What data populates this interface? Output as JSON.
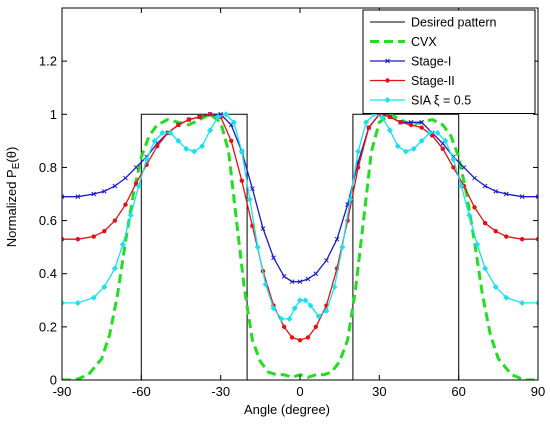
{
  "chart_data": {
    "type": "line",
    "title": "",
    "xlabel": "Angle (degree)",
    "ylabel_prefix": "Normalized  P",
    "ylabel_sub": "E",
    "ylabel_suffix": "(θ)",
    "xlim": [
      -90,
      90
    ],
    "ylim": [
      0,
      1.4
    ],
    "xticks": [
      -90,
      -60,
      -30,
      0,
      30,
      60,
      90
    ],
    "yticks": [
      0,
      0.2,
      0.4,
      0.6,
      0.8,
      1,
      1.2
    ],
    "grid": false,
    "legend_position": "top-right",
    "series": [
      {
        "name": "Desired pattern",
        "color": "#000000",
        "style": "solid",
        "marker": "none",
        "x": [
          -90,
          -60,
          -60,
          -20,
          -20,
          20,
          20,
          60,
          60,
          90
        ],
        "y": [
          0,
          0,
          1,
          1,
          0,
          0,
          1,
          1,
          0,
          0
        ]
      },
      {
        "name": "CVX",
        "color": "#22dd22",
        "style": "dashed",
        "marker": "none",
        "x": [
          -90,
          -85,
          -80,
          -75,
          -72,
          -69,
          -66,
          -63,
          -60,
          -57,
          -54,
          -50,
          -46,
          -42,
          -38,
          -34,
          -30,
          -27,
          -24,
          -21,
          -18,
          -15,
          -12,
          -9,
          -6,
          -3,
          0,
          3,
          6,
          9,
          12,
          15,
          18,
          21,
          24,
          27,
          30,
          34,
          38,
          42,
          46,
          50,
          54,
          57,
          60,
          63,
          66,
          69,
          72,
          75,
          80,
          85,
          90
        ],
        "y": [
          0,
          0,
          0.02,
          0.08,
          0.17,
          0.32,
          0.52,
          0.7,
          0.84,
          0.92,
          0.96,
          0.98,
          0.97,
          0.96,
          0.98,
          1,
          0.97,
          0.86,
          0.6,
          0.34,
          0.15,
          0.07,
          0.03,
          0.02,
          0.02,
          0.01,
          0.02,
          0.01,
          0.02,
          0.02,
          0.03,
          0.07,
          0.15,
          0.34,
          0.6,
          0.86,
          0.97,
          1,
          0.98,
          0.96,
          0.97,
          0.98,
          0.96,
          0.92,
          0.84,
          0.7,
          0.52,
          0.32,
          0.17,
          0.08,
          0.02,
          0,
          0
        ]
      },
      {
        "name": "Stage-I",
        "color": "#1a1acc",
        "style": "solid",
        "marker": "x",
        "x": [
          -90,
          -84,
          -78,
          -74,
          -70,
          -66,
          -62,
          -58,
          -54,
          -50,
          -46,
          -42,
          -38,
          -34,
          -30,
          -26,
          -22,
          -18,
          -14,
          -10,
          -6,
          -3,
          0,
          3,
          6,
          10,
          14,
          18,
          22,
          26,
          30,
          34,
          38,
          42,
          46,
          50,
          54,
          58,
          62,
          66,
          70,
          74,
          78,
          84,
          90
        ],
        "y": [
          0.69,
          0.69,
          0.7,
          0.71,
          0.73,
          0.76,
          0.8,
          0.84,
          0.89,
          0.93,
          0.96,
          0.98,
          0.99,
          1.0,
          1.0,
          0.96,
          0.86,
          0.72,
          0.57,
          0.46,
          0.39,
          0.37,
          0.37,
          0.38,
          0.4,
          0.45,
          0.53,
          0.66,
          0.82,
          0.95,
          1.0,
          0.99,
          0.97,
          0.97,
          0.97,
          0.93,
          0.89,
          0.84,
          0.8,
          0.76,
          0.73,
          0.71,
          0.7,
          0.69,
          0.69
        ]
      },
      {
        "name": "Stage-II",
        "color": "#e61010",
        "style": "solid",
        "marker": "dot",
        "x": [
          -90,
          -84,
          -78,
          -74,
          -70,
          -66,
          -62,
          -58,
          -54,
          -50,
          -46,
          -42,
          -38,
          -34,
          -30,
          -26,
          -22,
          -18,
          -14,
          -10,
          -6,
          -3,
          0,
          3,
          6,
          10,
          14,
          18,
          22,
          26,
          30,
          34,
          38,
          42,
          46,
          50,
          54,
          58,
          62,
          66,
          70,
          74,
          78,
          84,
          90
        ],
        "y": [
          0.53,
          0.53,
          0.54,
          0.56,
          0.6,
          0.66,
          0.74,
          0.81,
          0.88,
          0.93,
          0.96,
          0.98,
          0.99,
          1.0,
          0.99,
          0.9,
          0.75,
          0.58,
          0.41,
          0.28,
          0.2,
          0.16,
          0.15,
          0.16,
          0.2,
          0.28,
          0.42,
          0.6,
          0.8,
          0.95,
          1.0,
          0.99,
          0.97,
          0.96,
          0.95,
          0.92,
          0.87,
          0.8,
          0.73,
          0.65,
          0.59,
          0.56,
          0.54,
          0.53,
          0.53
        ]
      },
      {
        "name": "SIA ξ  = 0.5",
        "color": "#19e1f0",
        "style": "solid",
        "marker": "diamond",
        "x": [
          -90,
          -84,
          -78,
          -74,
          -70,
          -67,
          -64,
          -61,
          -58,
          -55,
          -52,
          -49,
          -46,
          -43,
          -40,
          -37,
          -34,
          -31,
          -28,
          -25,
          -22,
          -19,
          -16,
          -13,
          -10,
          -7,
          -4,
          -2,
          0,
          2,
          4,
          7,
          10,
          13,
          16,
          19,
          22,
          25,
          28,
          31,
          34,
          37,
          40,
          43,
          46,
          49,
          52,
          55,
          58,
          61,
          64,
          67,
          70,
          74,
          78,
          84,
          90
        ],
        "y": [
          0.29,
          0.29,
          0.31,
          0.35,
          0.42,
          0.51,
          0.62,
          0.73,
          0.83,
          0.9,
          0.93,
          0.93,
          0.9,
          0.87,
          0.86,
          0.88,
          0.94,
          0.99,
          1.0,
          0.97,
          0.86,
          0.68,
          0.5,
          0.36,
          0.27,
          0.23,
          0.23,
          0.27,
          0.3,
          0.3,
          0.28,
          0.24,
          0.26,
          0.35,
          0.5,
          0.68,
          0.86,
          0.97,
          1.0,
          0.99,
          0.94,
          0.88,
          0.86,
          0.87,
          0.9,
          0.93,
          0.93,
          0.9,
          0.83,
          0.73,
          0.62,
          0.51,
          0.42,
          0.35,
          0.31,
          0.29,
          0.29
        ]
      }
    ]
  }
}
